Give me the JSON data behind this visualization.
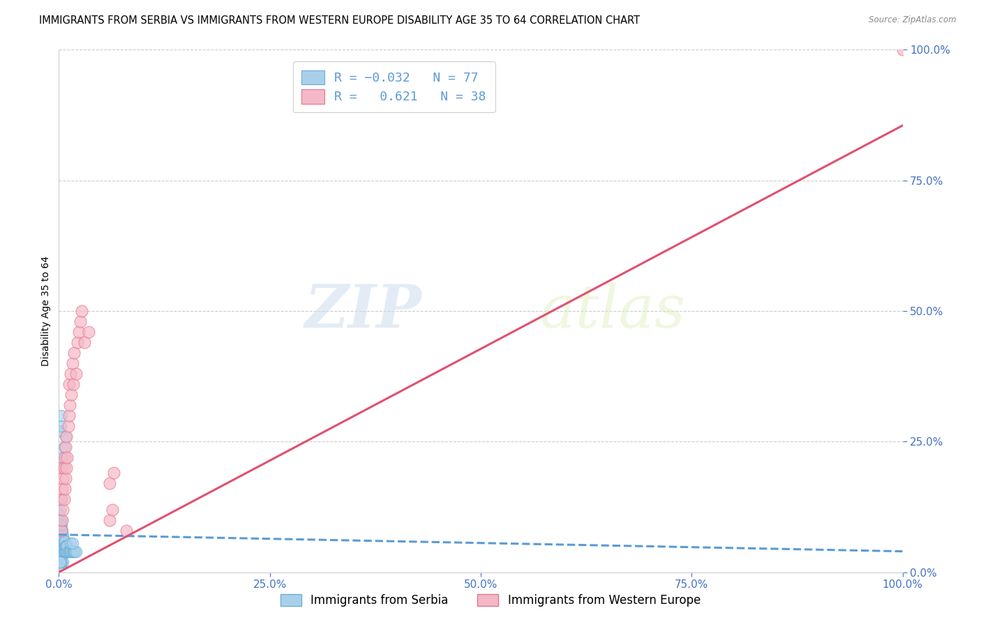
{
  "title": "IMMIGRANTS FROM SERBIA VS IMMIGRANTS FROM WESTERN EUROPE DISABILITY AGE 35 TO 64 CORRELATION CHART",
  "source": "Source: ZipAtlas.com",
  "ylabel": "Disability Age 35 to 64",
  "legend_label_blue": "Immigrants from Serbia",
  "legend_label_pink": "Immigrants from Western Europe",
  "r_blue": -0.032,
  "n_blue": 77,
  "r_pink": 0.621,
  "n_pink": 38,
  "blue_color": "#a8d0eb",
  "pink_color": "#f4b8c8",
  "blue_edge_color": "#6aaed6",
  "pink_edge_color": "#e8748a",
  "blue_line_color": "#5b9bd5",
  "pink_line_color": "#e05070",
  "watermark_zip": "ZIP",
  "watermark_atlas": "atlas",
  "xlim": [
    0.0,
    1.0
  ],
  "ylim": [
    0.0,
    1.0
  ],
  "xticks": [
    0.0,
    0.25,
    0.5,
    0.75,
    1.0
  ],
  "yticks": [
    0.0,
    0.25,
    0.5,
    0.75,
    1.0
  ],
  "xtick_labels": [
    "0.0%",
    "25.0%",
    "50.0%",
    "75.0%",
    "100.0%"
  ],
  "ytick_labels": [
    "0.0%",
    "25.0%",
    "50.0%",
    "75.0%",
    "100.0%"
  ],
  "grid_color": "#cccccc",
  "bg_color": "#ffffff",
  "title_fontsize": 10.5,
  "axis_label_fontsize": 10,
  "tick_fontsize": 11,
  "tick_color": "#4472c4",
  "blue_trend_x0": 0.0,
  "blue_trend_y0": 0.072,
  "blue_trend_x1": 1.0,
  "blue_trend_y1": 0.04,
  "pink_trend_x0": 0.0,
  "pink_trend_y0": 0.0,
  "pink_trend_x1": 1.0,
  "pink_trend_y1": 0.855,
  "blue_scatter_x": [
    0.0,
    0.0,
    0.0,
    0.0,
    0.0,
    0.0,
    0.0,
    0.0,
    0.001,
    0.001,
    0.001,
    0.001,
    0.001,
    0.001,
    0.001,
    0.001,
    0.002,
    0.002,
    0.002,
    0.002,
    0.002,
    0.002,
    0.003,
    0.003,
    0.003,
    0.003,
    0.003,
    0.003,
    0.003,
    0.003,
    0.004,
    0.004,
    0.004,
    0.004,
    0.004,
    0.005,
    0.005,
    0.005,
    0.005,
    0.006,
    0.006,
    0.006,
    0.007,
    0.007,
    0.007,
    0.008,
    0.008,
    0.009,
    0.009,
    0.01,
    0.01,
    0.011,
    0.012,
    0.013,
    0.014,
    0.015,
    0.016,
    0.017,
    0.018,
    0.019,
    0.02,
    0.002,
    0.003,
    0.004,
    0.006,
    0.008,
    0.001,
    0.002,
    0.003,
    0.014,
    0.016,
    0.005,
    0.002,
    0.003,
    0.001,
    0.001,
    0.001
  ],
  "blue_scatter_y": [
    0.04,
    0.05,
    0.06,
    0.07,
    0.08,
    0.09,
    0.1,
    0.11,
    0.03,
    0.05,
    0.06,
    0.07,
    0.08,
    0.09,
    0.1,
    0.12,
    0.04,
    0.05,
    0.06,
    0.07,
    0.08,
    0.09,
    0.03,
    0.04,
    0.05,
    0.06,
    0.07,
    0.08,
    0.09,
    0.1,
    0.04,
    0.05,
    0.06,
    0.07,
    0.08,
    0.04,
    0.05,
    0.06,
    0.07,
    0.04,
    0.05,
    0.06,
    0.04,
    0.05,
    0.06,
    0.04,
    0.05,
    0.04,
    0.05,
    0.04,
    0.05,
    0.04,
    0.04,
    0.04,
    0.04,
    0.04,
    0.04,
    0.04,
    0.04,
    0.04,
    0.04,
    0.14,
    0.2,
    0.22,
    0.24,
    0.26,
    0.27,
    0.28,
    0.3,
    0.055,
    0.055,
    0.02,
    0.015,
    0.02,
    0.02,
    0.02,
    0.02
  ],
  "pink_scatter_x": [
    0.003,
    0.003,
    0.003,
    0.004,
    0.004,
    0.005,
    0.005,
    0.006,
    0.006,
    0.007,
    0.007,
    0.008,
    0.008,
    0.009,
    0.009,
    0.01,
    0.011,
    0.012,
    0.012,
    0.013,
    0.014,
    0.015,
    0.016,
    0.017,
    0.018,
    0.02,
    0.022,
    0.024,
    0.025,
    0.027,
    0.03,
    0.035,
    0.06,
    0.065,
    0.06,
    0.063,
    0.08,
    1.0
  ],
  "pink_scatter_y": [
    0.08,
    0.14,
    0.2,
    0.1,
    0.16,
    0.12,
    0.18,
    0.14,
    0.2,
    0.16,
    0.22,
    0.18,
    0.24,
    0.2,
    0.26,
    0.22,
    0.28,
    0.3,
    0.36,
    0.32,
    0.38,
    0.34,
    0.4,
    0.36,
    0.42,
    0.38,
    0.44,
    0.46,
    0.48,
    0.5,
    0.44,
    0.46,
    0.17,
    0.19,
    0.1,
    0.12,
    0.08,
    1.0
  ]
}
